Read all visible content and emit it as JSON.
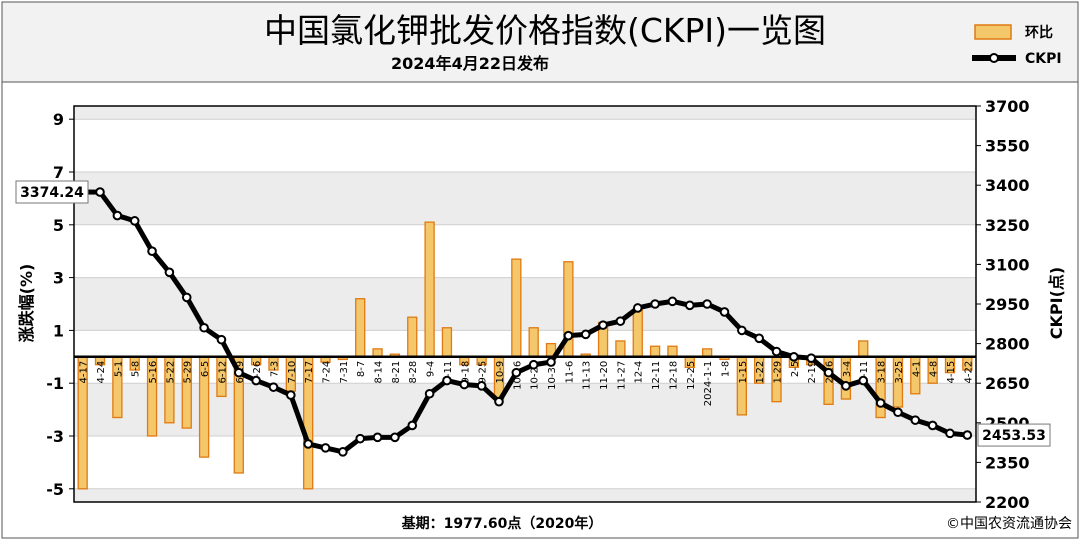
{
  "header": {
    "title": "中国氯化钾批发价格指数(CKPI)一览图",
    "subtitle": "2024年4月22日发布"
  },
  "legend": {
    "bar_label": "环比",
    "line_label": "CKPI"
  },
  "footer": {
    "base_note": "基期：1977.60点（2020年）",
    "copyright": "©中国农资流通协会"
  },
  "colors": {
    "bar_fill": "#f3c76a",
    "bar_stroke": "#e07a12",
    "line": "#000000",
    "plot_band": "#ececec",
    "header_bg": "#f2f2f2"
  },
  "chart_data": {
    "type": "bar+line",
    "ylabel_left": "涨跌幅(%)",
    "ylabel_right": "CKPI(点)",
    "y_left_ticks": [
      "9",
      "7",
      "5",
      "3",
      "1",
      "-1",
      "-3",
      "-5"
    ],
    "y_right_ticks": [
      "3700",
      "3550",
      "3400",
      "3250",
      "3100",
      "2950",
      "2800",
      "2650",
      "2500",
      "2350",
      "2200"
    ],
    "ylim_left": [
      -5.5,
      9.5
    ],
    "ylim_right": [
      2200,
      3700
    ],
    "grid": true,
    "legend_position": "top-right",
    "categories": [
      "4-17",
      "4-24",
      "5-1",
      "5-8",
      "5-16",
      "5-22",
      "5-29",
      "6-5",
      "6-12",
      "6-19",
      "6-26",
      "7-3",
      "7-10",
      "7-17",
      "7-24",
      "7-31",
      "8-7",
      "8-14",
      "8-21",
      "8-28",
      "9-4",
      "9-11",
      "9-18",
      "9-25",
      "10-9",
      "10-16",
      "10-23",
      "10-30",
      "11-6",
      "11-13",
      "11-20",
      "11-27",
      "12-4",
      "12-11",
      "12-18",
      "12-25",
      "2024-1-1",
      "1-8",
      "1-15",
      "1-22",
      "1-29",
      "2-5",
      "2-19",
      "2-26",
      "3-4",
      "3-11",
      "3-18",
      "3-25",
      "4-1",
      "4-8",
      "4-15",
      "4-22"
    ],
    "series": [
      {
        "name": "环比",
        "type": "bar",
        "values": [
          -5.0,
          -0.3,
          -2.3,
          -0.5,
          -3.0,
          -2.5,
          -2.7,
          -3.8,
          -1.5,
          -4.4,
          -0.3,
          -0.5,
          -1.3,
          -5.0,
          -0.2,
          -0.1,
          2.2,
          0.3,
          0.1,
          1.5,
          5.1,
          1.1,
          -0.3,
          -0.3,
          -1.6,
          3.7,
          1.1,
          0.5,
          3.6,
          0.1,
          1.3,
          0.6,
          1.8,
          0.4,
          0.4,
          -0.4,
          0.3,
          -0.1,
          -2.2,
          -1.0,
          -1.7,
          -0.4,
          -0.3,
          -1.8,
          -1.6,
          0.6,
          -2.3,
          -1.9,
          -1.4,
          -1.0,
          -0.6,
          -0.5
        ]
      },
      {
        "name": "CKPI",
        "type": "line",
        "values": [
          3374.24,
          3374,
          3285,
          3265,
          3150,
          3070,
          2975,
          2860,
          2815,
          2690,
          2660,
          2635,
          2605,
          2420,
          2405,
          2390,
          2440,
          2445,
          2445,
          2490,
          2610,
          2660,
          2645,
          2640,
          2580,
          2690,
          2720,
          2730,
          2830,
          2835,
          2870,
          2885,
          2935,
          2950,
          2960,
          2945,
          2950,
          2920,
          2850,
          2820,
          2770,
          2750,
          2745,
          2690,
          2640,
          2660,
          2575,
          2540,
          2510,
          2490,
          2460,
          2453.53
        ]
      }
    ],
    "annotations": [
      {
        "label": "3374.24",
        "category": "4-17",
        "series": "CKPI"
      },
      {
        "label": "2453.53",
        "category": "4-22",
        "series": "CKPI"
      }
    ]
  }
}
